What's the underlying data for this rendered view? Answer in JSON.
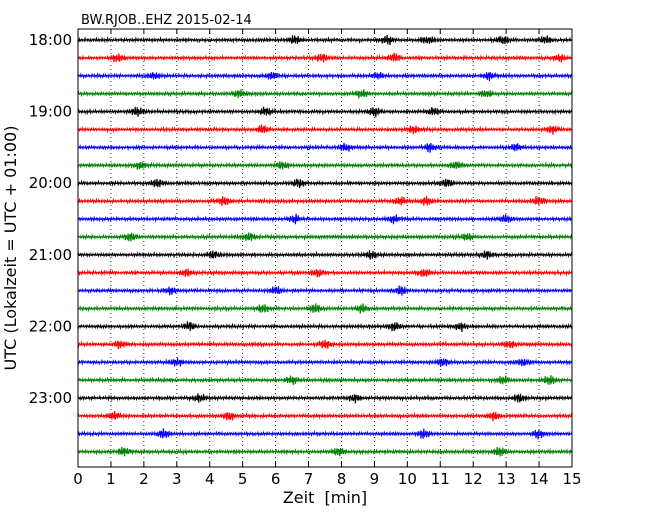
{
  "chart_data": {
    "type": "line",
    "title": "BW.RJOB..EHZ 2015-02-14",
    "xlabel": "Zeit  [min]",
    "ylabel": "UTC (Lokalzeit = UTC + 01:00)",
    "xlim": [
      0,
      15
    ],
    "xticks": [
      0,
      1,
      2,
      3,
      4,
      5,
      6,
      7,
      8,
      9,
      10,
      11,
      12,
      13,
      14,
      15
    ],
    "y_tick_labels": [
      "18:00",
      "19:00",
      "20:00",
      "21:00",
      "22:00",
      "23:00"
    ],
    "start_time": "18:00",
    "end_time": "24:00",
    "trace_interval_minutes": 15,
    "trace_count": 24,
    "trace_colors": [
      "#000000",
      "#ff0000",
      "#0000ff",
      "#008000"
    ],
    "vertical_grid": "dotted, every 1 min",
    "traces": [
      {
        "start": "18:00",
        "color": "#000000",
        "bursts": [
          6.6,
          9.4,
          10.6,
          12.9,
          14.2
        ]
      },
      {
        "start": "18:15",
        "color": "#ff0000",
        "bursts": [
          1.2,
          7.4,
          9.6,
          14.6
        ]
      },
      {
        "start": "18:30",
        "color": "#0000ff",
        "bursts": [
          2.3,
          5.9,
          9.1,
          12.5
        ]
      },
      {
        "start": "18:45",
        "color": "#008000",
        "bursts": [
          4.9,
          8.6,
          12.4
        ]
      },
      {
        "start": "19:00",
        "color": "#000000",
        "bursts": [
          1.8,
          5.7,
          9.0,
          10.8
        ]
      },
      {
        "start": "19:15",
        "color": "#ff0000",
        "bursts": [
          5.6,
          10.2,
          14.4
        ]
      },
      {
        "start": "19:30",
        "color": "#0000ff",
        "bursts": [
          8.1,
          10.7,
          13.3
        ]
      },
      {
        "start": "19:45",
        "color": "#008000",
        "bursts": [
          1.9,
          6.2,
          11.5
        ]
      },
      {
        "start": "20:00",
        "color": "#000000",
        "bursts": [
          2.4,
          6.7,
          11.2
        ]
      },
      {
        "start": "20:15",
        "color": "#ff0000",
        "bursts": [
          4.4,
          9.8,
          10.6,
          14.0
        ]
      },
      {
        "start": "20:30",
        "color": "#0000ff",
        "bursts": [
          6.6,
          9.6,
          13.0
        ]
      },
      {
        "start": "20:45",
        "color": "#008000",
        "bursts": [
          1.6,
          5.2,
          11.8
        ]
      },
      {
        "start": "21:00",
        "color": "#000000",
        "bursts": [
          4.1,
          8.9,
          12.4
        ]
      },
      {
        "start": "21:15",
        "color": "#ff0000",
        "bursts": [
          3.3,
          7.3,
          10.5
        ]
      },
      {
        "start": "21:30",
        "color": "#0000ff",
        "bursts": [
          2.8,
          6.0,
          9.8
        ]
      },
      {
        "start": "21:45",
        "color": "#008000",
        "bursts": [
          5.6,
          7.2,
          8.6
        ]
      },
      {
        "start": "22:00",
        "color": "#000000",
        "bursts": [
          3.4,
          9.6,
          11.6
        ]
      },
      {
        "start": "22:15",
        "color": "#ff0000",
        "bursts": [
          1.3,
          7.5,
          13.1
        ]
      },
      {
        "start": "22:30",
        "color": "#0000ff",
        "bursts": [
          3.0,
          11.1,
          13.5
        ]
      },
      {
        "start": "22:45",
        "color": "#008000",
        "bursts": [
          6.5,
          12.9,
          14.3
        ]
      },
      {
        "start": "23:00",
        "color": "#000000",
        "bursts": [
          3.7,
          8.4,
          13.4
        ]
      },
      {
        "start": "23:15",
        "color": "#ff0000",
        "bursts": [
          1.1,
          4.6,
          12.6
        ]
      },
      {
        "start": "23:30",
        "color": "#0000ff",
        "bursts": [
          2.6,
          10.5,
          14.0
        ]
      },
      {
        "start": "23:45",
        "color": "#008000",
        "bursts": [
          1.4,
          7.9,
          12.8
        ]
      }
    ]
  }
}
